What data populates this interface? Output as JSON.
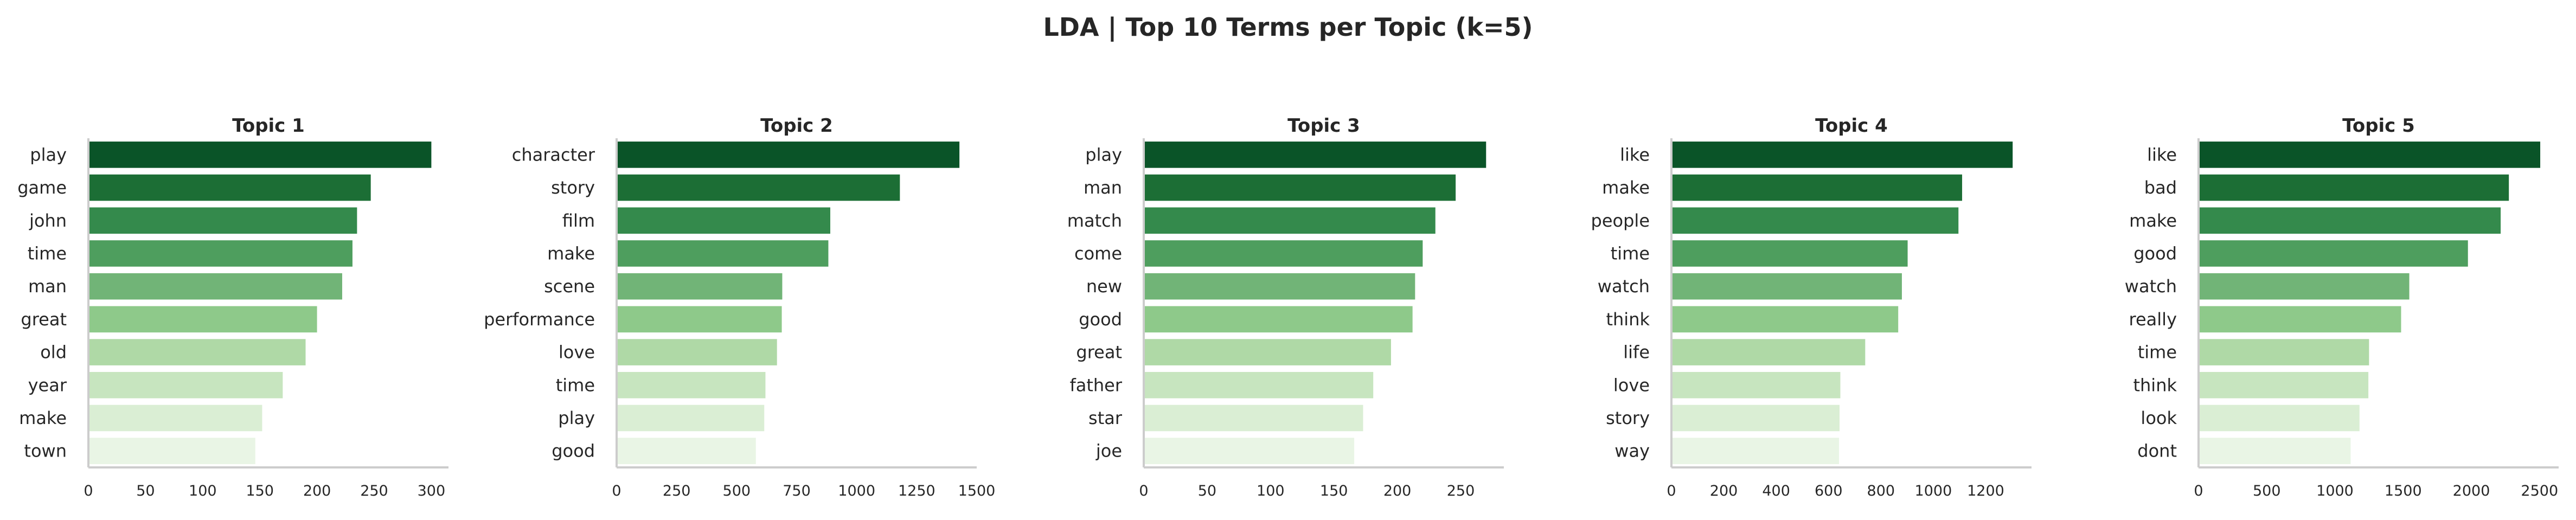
{
  "chart_data": {
    "title": "LDA | Top 10 Terms per Topic (k=5)",
    "type": "bar",
    "orientation": "horizontal",
    "colors": [
      "#0a5428",
      "#1c6e35",
      "#348a4c",
      "#4e9e5e",
      "#71b477",
      "#8ec98a",
      "#afd9a6",
      "#c7e5bf",
      "#daeed4",
      "#e9f5e5"
    ],
    "panels": [
      {
        "title": "Topic 1",
        "categories": [
          "play",
          "game",
          "john",
          "time",
          "man",
          "great",
          "old",
          "year",
          "make",
          "town"
        ],
        "values": [
          300,
          247,
          235,
          231,
          222,
          200,
          190,
          170,
          152,
          146
        ],
        "xlim": [
          0,
          315
        ],
        "xticks": [
          0,
          50,
          100,
          150,
          200,
          250,
          300
        ]
      },
      {
        "title": "Topic 2",
        "categories": [
          "character",
          "story",
          "film",
          "make",
          "scene",
          "performance",
          "love",
          "time",
          "play",
          "good"
        ],
        "values": [
          1428,
          1180,
          890,
          882,
          690,
          688,
          668,
          620,
          615,
          580
        ],
        "xlim": [
          0,
          1500
        ],
        "xticks": [
          0,
          250,
          500,
          750,
          1000,
          1250,
          1500
        ]
      },
      {
        "title": "Topic 3",
        "categories": [
          "play",
          "man",
          "match",
          "come",
          "new",
          "good",
          "great",
          "father",
          "star",
          "joe"
        ],
        "values": [
          270,
          246,
          230,
          220,
          214,
          212,
          195,
          181,
          173,
          166
        ],
        "xlim": [
          0,
          284
        ],
        "xticks": [
          0,
          50,
          100,
          150,
          200,
          250
        ]
      },
      {
        "title": "Topic 4",
        "categories": [
          "like",
          "make",
          "people",
          "time",
          "watch",
          "think",
          "life",
          "love",
          "story",
          "way"
        ],
        "values": [
          1303,
          1110,
          1096,
          902,
          880,
          866,
          740,
          645,
          642,
          640
        ],
        "xlim": [
          0,
          1375
        ],
        "xticks": [
          0,
          200,
          400,
          600,
          800,
          1000,
          1200
        ]
      },
      {
        "title": "Topic 5",
        "categories": [
          "like",
          "bad",
          "make",
          "good",
          "watch",
          "really",
          "time",
          "think",
          "look",
          "dont"
        ],
        "values": [
          2505,
          2275,
          2215,
          1975,
          1545,
          1485,
          1250,
          1245,
          1180,
          1115
        ],
        "xlim": [
          0,
          2640
        ],
        "xticks": [
          0,
          500,
          1000,
          1500,
          2000,
          2500
        ]
      }
    ]
  }
}
